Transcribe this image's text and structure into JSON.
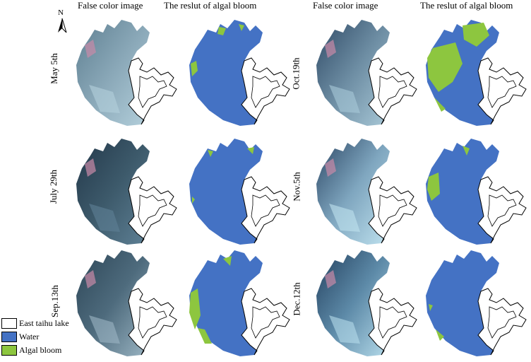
{
  "headers": {
    "false_color_left": "False color image",
    "result_left": "The reslut of algal bloom",
    "false_color_right": "False color image",
    "result_right": "The reslut of algal bloom"
  },
  "north_label": "N",
  "dates": {
    "left": [
      "May 5th",
      "July 29th",
      "Sep.13th"
    ],
    "right": [
      "Oct.19th",
      "Nov.5th",
      "Dec.12th"
    ]
  },
  "legend": {
    "items": [
      {
        "label": "East taihu lake",
        "color": "#ffffff"
      },
      {
        "label": "Water",
        "color": "#4472c4"
      },
      {
        "label": "Algal bloom",
        "color": "#8dc63f"
      }
    ]
  },
  "colors": {
    "water": "#4472c4",
    "algae": "#8dc63f",
    "false_color_base": "#7f9cae",
    "false_color_dark": "#3b5566",
    "false_color_light": "#a8cfe0",
    "false_color_pink": "#c98aa8"
  }
}
